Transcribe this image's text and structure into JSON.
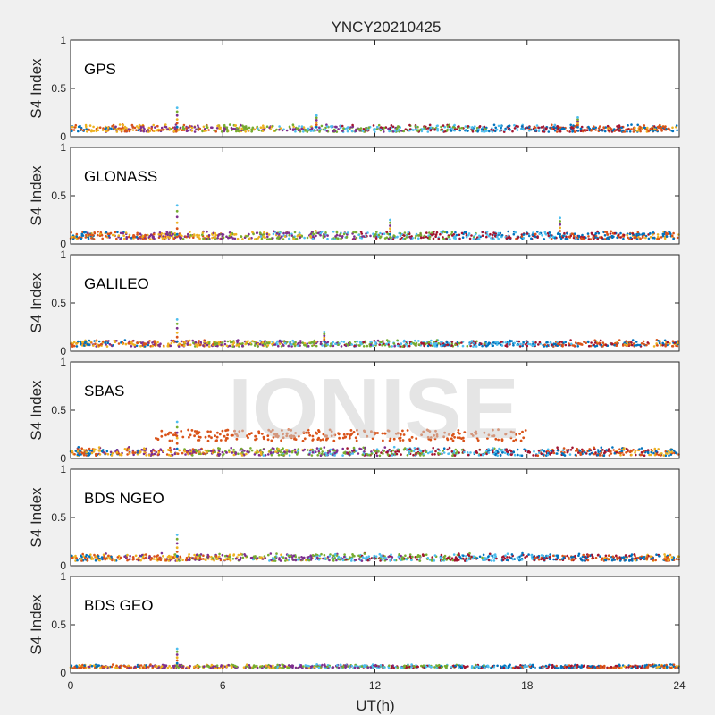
{
  "figure": {
    "title": "YNCY20210425",
    "xlabel": "UT(h)",
    "ylabel": "S4 Index",
    "watermark": "IONISE",
    "x_ticks": [
      "0",
      "6",
      "12",
      "18",
      "24"
    ],
    "y_ticks": [
      "0",
      "0.5",
      "1"
    ],
    "palette": [
      "#0072BD",
      "#D95319",
      "#EDB120",
      "#7E2F8E",
      "#77AC30",
      "#4DBEEE",
      "#A2142F"
    ]
  },
  "chart_data": [
    {
      "type": "scatter",
      "panel_label": "GPS",
      "xlim": [
        0,
        24
      ],
      "ylim": [
        0,
        1
      ],
      "baseline_range": [
        0.05,
        0.13
      ],
      "spikes": [
        {
          "x": 4.2,
          "y": 0.3
        },
        {
          "x": 9.7,
          "y": 0.22
        },
        {
          "x": 20.0,
          "y": 0.2
        }
      ]
    },
    {
      "type": "scatter",
      "panel_label": "GLONASS",
      "xlim": [
        0,
        24
      ],
      "ylim": [
        0,
        1
      ],
      "baseline_range": [
        0.05,
        0.14
      ],
      "spikes": [
        {
          "x": 4.2,
          "y": 0.4
        },
        {
          "x": 12.6,
          "y": 0.25
        },
        {
          "x": 19.3,
          "y": 0.27
        }
      ]
    },
    {
      "type": "scatter",
      "panel_label": "GALILEO",
      "xlim": [
        0,
        24
      ],
      "ylim": [
        0,
        1
      ],
      "baseline_range": [
        0.05,
        0.12
      ],
      "spikes": [
        {
          "x": 4.2,
          "y": 0.33
        },
        {
          "x": 10.0,
          "y": 0.2
        }
      ]
    },
    {
      "type": "scatter",
      "panel_label": "SBAS",
      "xlim": [
        0,
        24
      ],
      "ylim": [
        0,
        1
      ],
      "baseline_range": [
        0.03,
        0.12
      ],
      "elevated_series": {
        "x_range": [
          3.2,
          18.0
        ],
        "y_range": [
          0.18,
          0.3
        ]
      },
      "spikes": [
        {
          "x": 4.2,
          "y": 0.38
        }
      ]
    },
    {
      "type": "scatter",
      "panel_label": "BDS NGEO",
      "xlim": [
        0,
        24
      ],
      "ylim": [
        0,
        1
      ],
      "baseline_range": [
        0.05,
        0.13
      ],
      "spikes": [
        {
          "x": 4.2,
          "y": 0.32
        }
      ]
    },
    {
      "type": "scatter",
      "panel_label": "BDS GEO",
      "xlim": [
        0,
        24
      ],
      "ylim": [
        0,
        1
      ],
      "baseline_range": [
        0.05,
        0.09
      ],
      "spikes": [
        {
          "x": 4.2,
          "y": 0.25
        }
      ]
    }
  ]
}
